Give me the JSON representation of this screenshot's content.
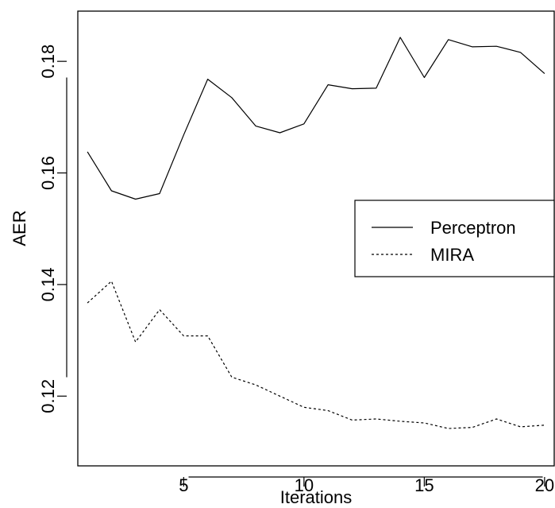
{
  "chart_data": {
    "type": "line",
    "title": "",
    "xlabel": "Iterations",
    "ylabel": "AER",
    "xlim": [
      0.6,
      20.4
    ],
    "ylim": [
      0.1075,
      0.189
    ],
    "x_ticks": [
      5,
      10,
      15,
      20
    ],
    "x_tick_labels": [
      "5",
      "10",
      "15",
      "20"
    ],
    "y_ticks": [
      0.12,
      0.14,
      0.16,
      0.18
    ],
    "y_tick_labels": [
      "0.12",
      "0.14",
      "0.16",
      "0.18"
    ],
    "grid": false,
    "legend_position": "right",
    "x": [
      1,
      2,
      3,
      4,
      5,
      6,
      7,
      8,
      9,
      10,
      11,
      12,
      13,
      14,
      15,
      16,
      17,
      18,
      19,
      20
    ],
    "series": [
      {
        "name": "Perceptron",
        "style": "solid",
        "color": "#000000",
        "values": [
          0.1638,
          0.1568,
          0.1553,
          0.1563,
          0.1668,
          0.1768,
          0.1735,
          0.1684,
          0.1672,
          0.1688,
          0.1758,
          0.1751,
          0.1752,
          0.1843,
          0.1771,
          0.1839,
          0.1826,
          0.1827,
          0.1816,
          0.1778
        ]
      },
      {
        "name": "MIRA",
        "style": "dashed",
        "color": "#000000",
        "values": [
          0.1367,
          0.1406,
          0.1297,
          0.1355,
          0.1308,
          0.1308,
          0.1234,
          0.122,
          0.12,
          0.118,
          0.1174,
          0.1157,
          0.1159,
          0.1155,
          0.1152,
          0.1142,
          0.1144,
          0.1159,
          0.1145,
          0.1148
        ]
      }
    ]
  }
}
